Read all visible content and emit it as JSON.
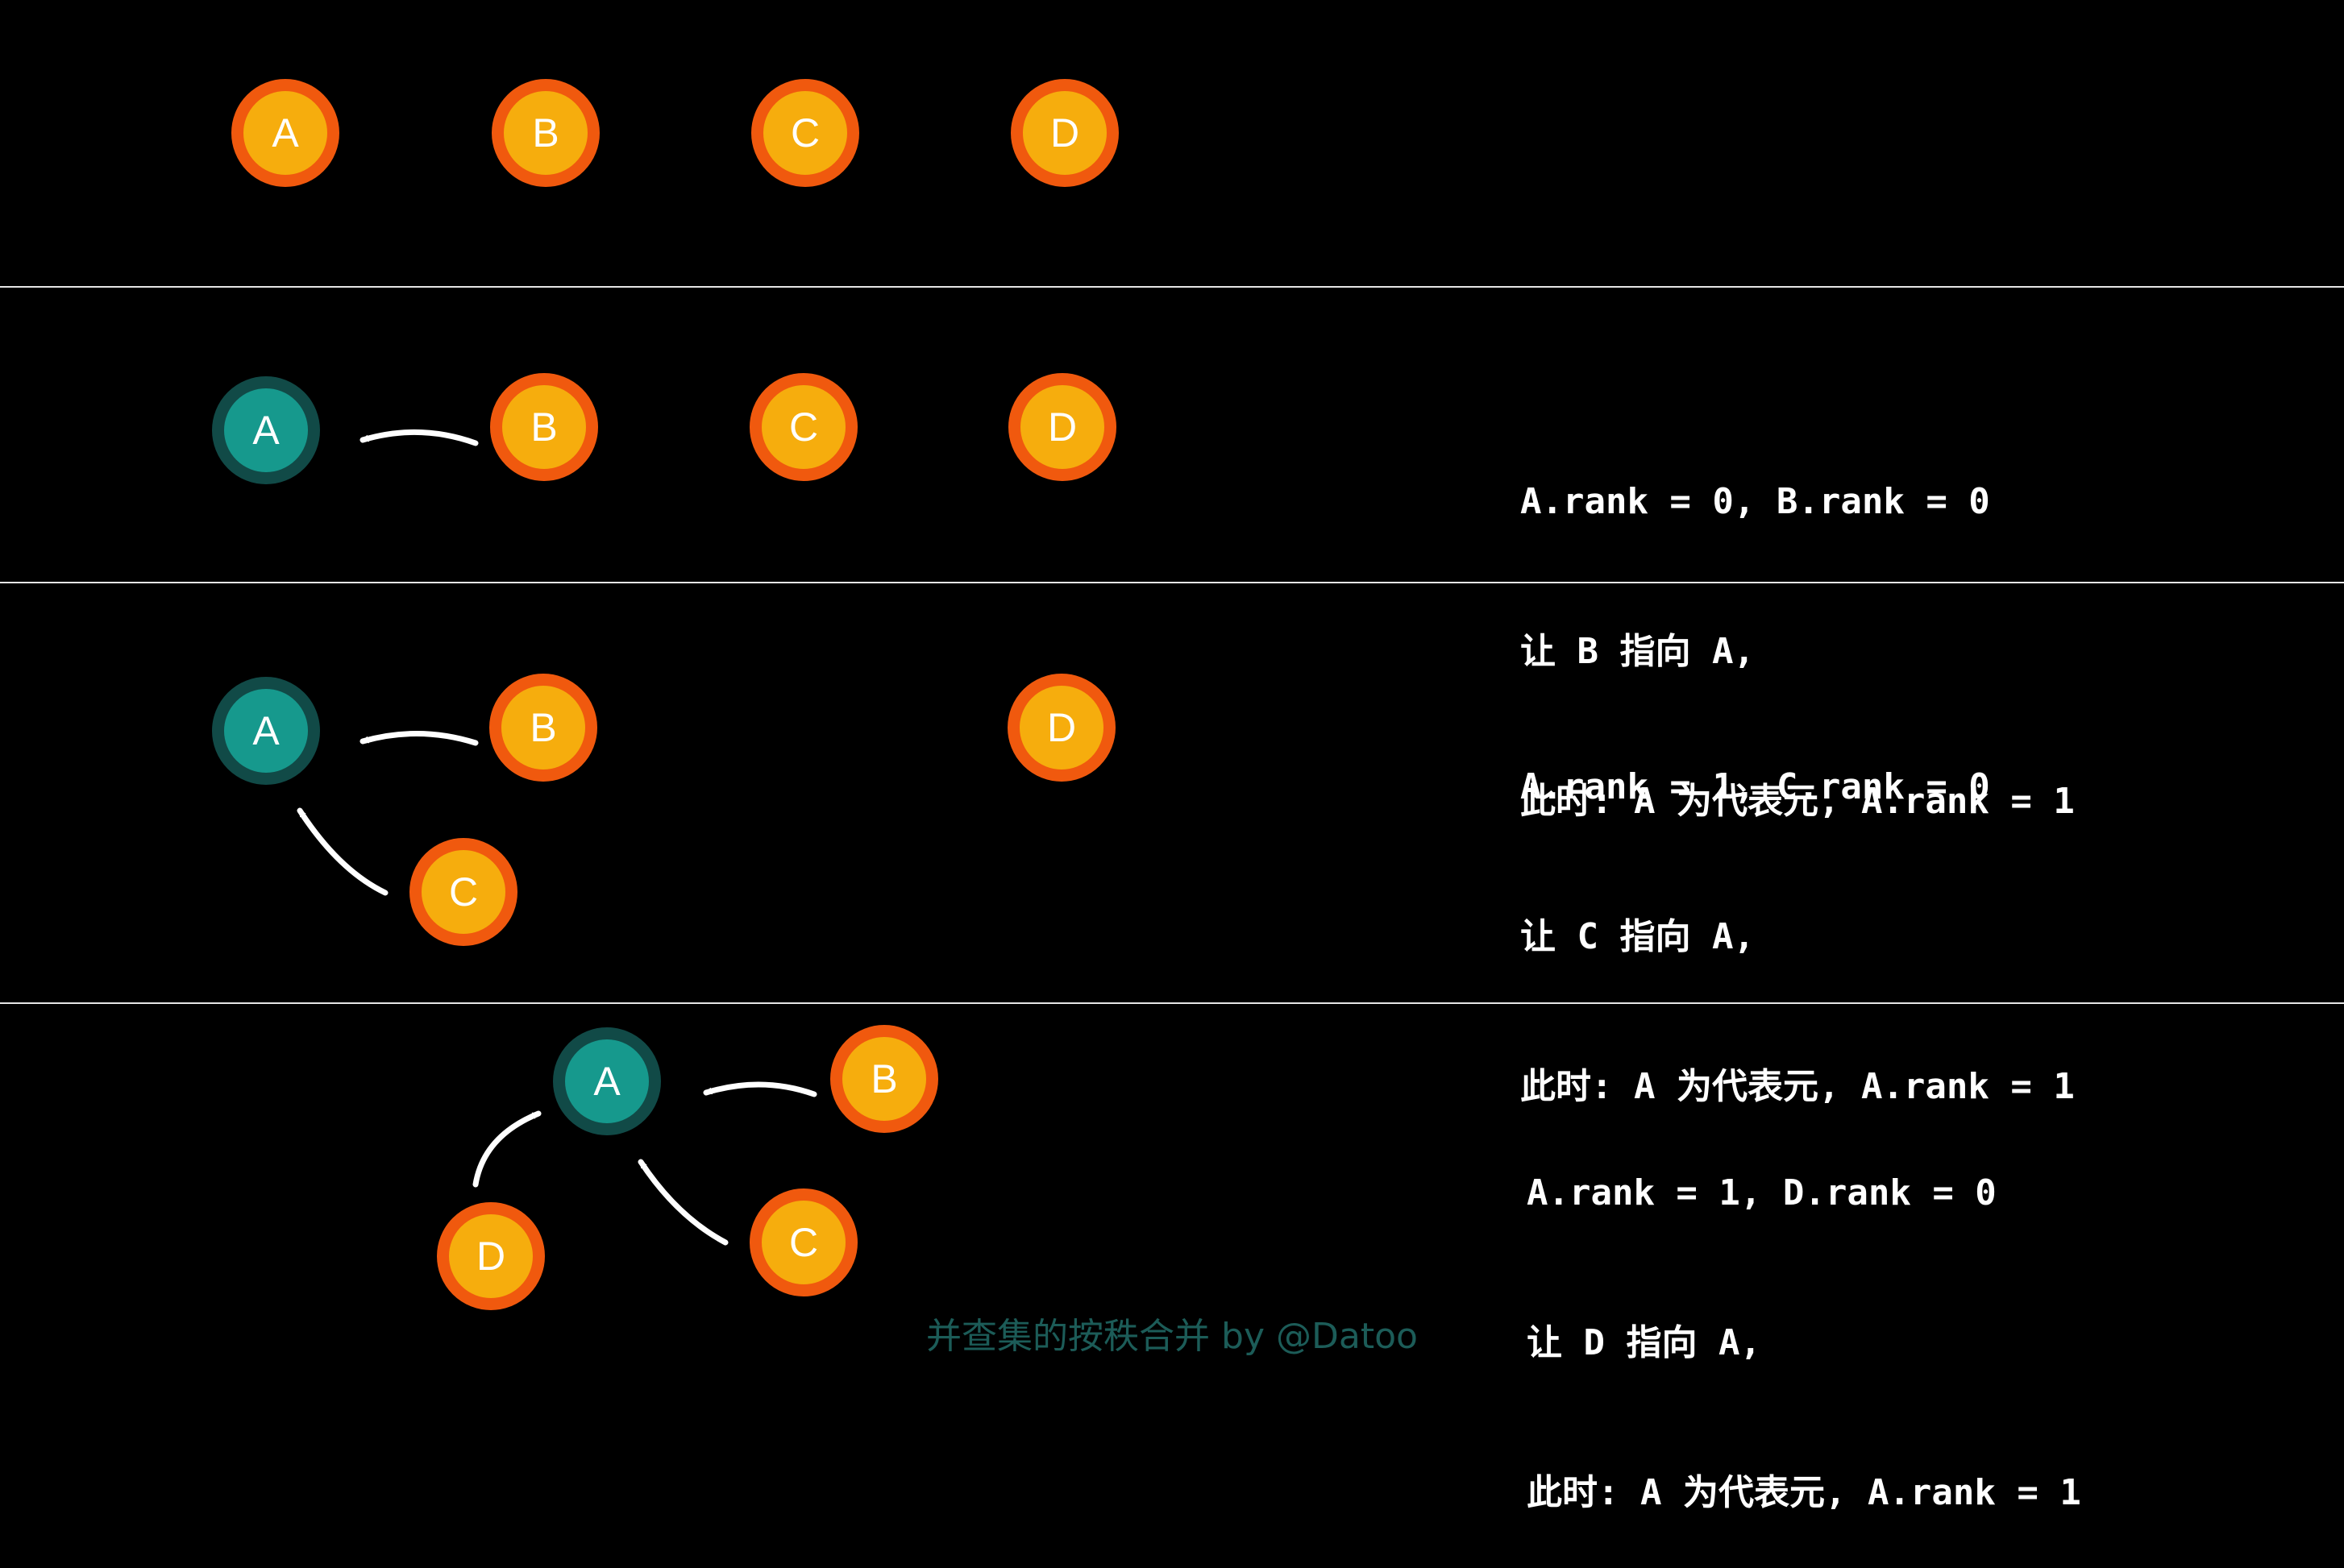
{
  "colors": {
    "background": "#000000",
    "node_fill": "#f6ad0d",
    "node_border": "#f0590e",
    "root_fill": "#16998d",
    "root_border": "#114a47",
    "arrow": "#ffffff",
    "footer_text": "#1c5c58"
  },
  "panels": [
    {
      "nodes": [
        {
          "label": "A",
          "root": false
        },
        {
          "label": "B",
          "root": false
        },
        {
          "label": "C",
          "root": false
        },
        {
          "label": "D",
          "root": false
        }
      ],
      "lines": []
    },
    {
      "nodes": [
        {
          "label": "A",
          "root": true
        },
        {
          "label": "B",
          "root": false
        },
        {
          "label": "C",
          "root": false
        },
        {
          "label": "D",
          "root": false
        }
      ],
      "lines": [
        "A.rank = 0, B.rank = 0",
        "让 B 指向 A,",
        "此时: A 为代表元, A.rank = 1"
      ]
    },
    {
      "nodes": [
        {
          "label": "A",
          "root": true
        },
        {
          "label": "B",
          "root": false
        },
        {
          "label": "D",
          "root": false
        },
        {
          "label": "C",
          "root": false
        }
      ],
      "lines": [
        "A.rank = 1, C.rank = 0",
        "让 C 指向 A,",
        "此时: A 为代表元, A.rank = 1"
      ]
    },
    {
      "nodes": [
        {
          "label": "A",
          "root": true
        },
        {
          "label": "B",
          "root": false
        },
        {
          "label": "C",
          "root": false
        },
        {
          "label": "D",
          "root": false
        }
      ],
      "lines": [
        "A.rank = 1, D.rank = 0",
        "让 D 指向 A,",
        "此时: A 为代表元, A.rank = 1"
      ]
    }
  ],
  "edges": [
    {
      "from": "B",
      "to": "A"
    },
    {
      "from": "C",
      "to": "A"
    },
    {
      "from": "D",
      "to": "A"
    }
  ],
  "footer": "并查集的按秩合并 by @Datoo"
}
